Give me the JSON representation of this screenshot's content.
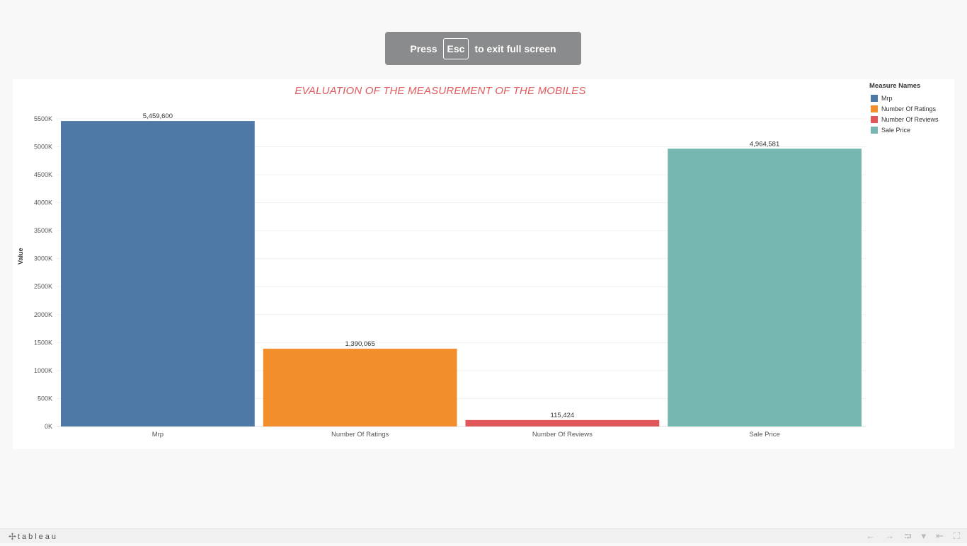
{
  "banner": {
    "press": "Press",
    "key": "Esc",
    "suffix": "to exit full screen"
  },
  "footer": {
    "logo_text": "tableau",
    "logo_icon": "tableau-cross-icon",
    "controls": [
      {
        "name": "undo-button",
        "glyph": "←"
      },
      {
        "name": "redo-button",
        "glyph": "→"
      },
      {
        "name": "share-button",
        "glyph": "⮒"
      },
      {
        "name": "share-dropdown-button",
        "glyph": "▾"
      },
      {
        "name": "revert-button",
        "glyph": "⇤"
      },
      {
        "name": "fullscreen-button",
        "glyph": "⛶"
      }
    ]
  },
  "colors": {
    "title": "#e0595c",
    "mrp": "#4e79a7",
    "ratings": "#f28e2b",
    "reviews": "#e15759",
    "sale": "#76b7b2"
  },
  "chart_data": {
    "type": "bar",
    "title": "EVALUATION OF THE MEASUREMENT OF THE MOBILES",
    "ylabel": "Value",
    "xlabel": "",
    "ylim": [
      0,
      5500000
    ],
    "yticks": [
      0,
      500000,
      1000000,
      1500000,
      2000000,
      2500000,
      3000000,
      3500000,
      4000000,
      4500000,
      5000000,
      5500000
    ],
    "ytick_labels": [
      "0K",
      "500K",
      "1000K",
      "1500K",
      "2000K",
      "2500K",
      "3000K",
      "3500K",
      "4000K",
      "4500K",
      "5000K",
      "5500K"
    ],
    "categories": [
      "Mrp",
      "Number Of Ratings",
      "Number Of Reviews",
      "Sale Price"
    ],
    "values": [
      5459600,
      1390065,
      115424,
      4964581
    ],
    "value_labels": [
      "5,459,600",
      "1,390,065",
      "115,424",
      "4,964,581"
    ],
    "bar_colors": [
      "#4e79a7",
      "#f28e2b",
      "#e15759",
      "#76b7b2"
    ],
    "grid": true,
    "legend": {
      "title": "Measure Names",
      "placement": "right",
      "items": [
        {
          "label": "Mrp",
          "color": "#4e79a7"
        },
        {
          "label": "Number Of Ratings",
          "color": "#f28e2b"
        },
        {
          "label": "Number Of Reviews",
          "color": "#e15759"
        },
        {
          "label": "Sale Price",
          "color": "#76b7b2"
        }
      ]
    }
  }
}
